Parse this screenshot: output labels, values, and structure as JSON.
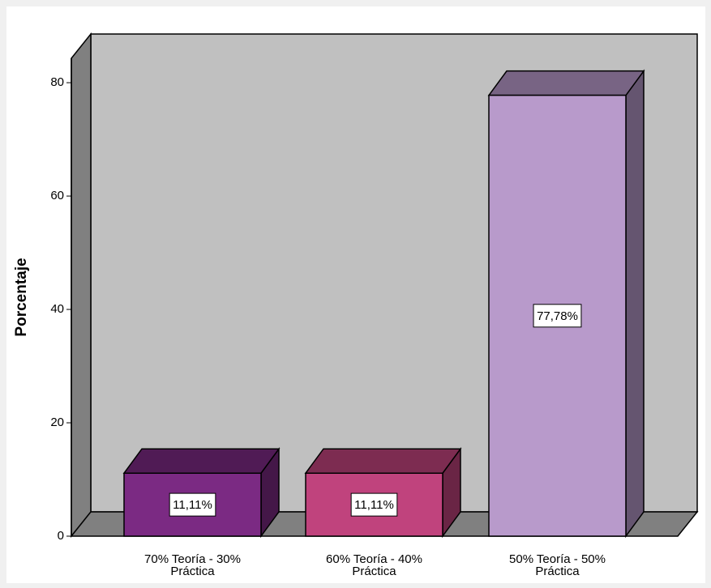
{
  "chart_data": {
    "type": "bar3d",
    "ylabel": "Porcentaje",
    "categories": [
      "70% Teoría - 30% Práctica",
      "60% Teoría - 40% Práctica",
      "50% Teoría - 50% Práctica"
    ],
    "values": [
      11.11,
      11.11,
      77.78
    ],
    "value_labels": [
      "11,11%",
      "11,11%",
      "77,78%"
    ],
    "colors": [
      "#7b2a83",
      "#c0437d",
      "#b89acb"
    ],
    "ylim": [
      0,
      84.3
    ],
    "yticks": [
      0,
      20,
      40,
      60,
      80
    ]
  }
}
